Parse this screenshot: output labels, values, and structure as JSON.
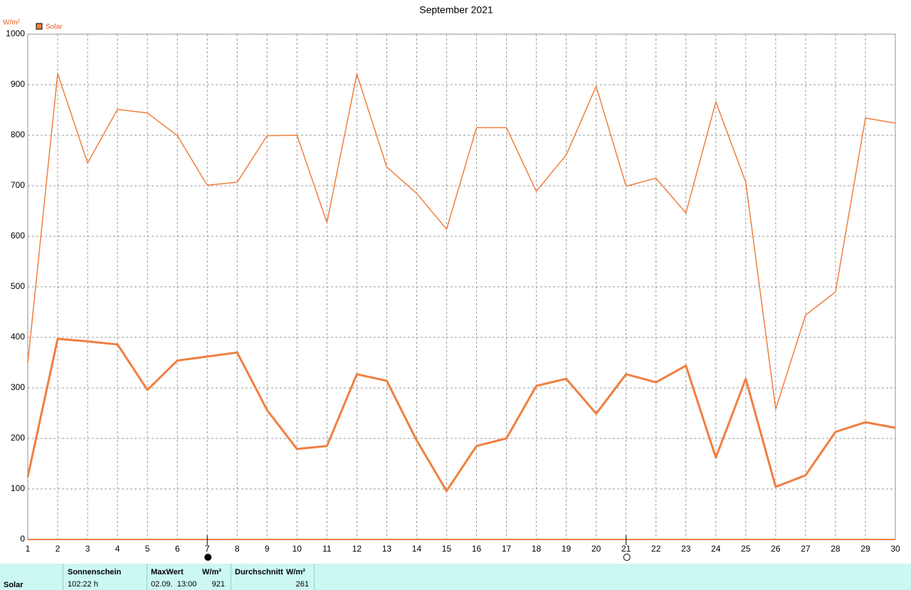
{
  "chart_data": {
    "type": "line",
    "title": "September 2021",
    "y_label": "W/m²",
    "legend": "Solar",
    "x": [
      1,
      2,
      3,
      4,
      5,
      6,
      7,
      8,
      9,
      10,
      11,
      12,
      13,
      14,
      15,
      16,
      17,
      18,
      19,
      20,
      21,
      22,
      23,
      24,
      25,
      26,
      27,
      28,
      29,
      30
    ],
    "series": [
      {
        "name": "Solar",
        "color": "#f07f40",
        "width": 1.5,
        "values": [
          349,
          922,
          745,
          851,
          844,
          799,
          701,
          707,
          799,
          800,
          627,
          921,
          737,
          685,
          614,
          815,
          815,
          689,
          761,
          897,
          699,
          715,
          646,
          866,
          707,
          258,
          444,
          490,
          834,
          824
        ]
      },
      {
        "color": "#f07f40",
        "width": 3,
        "values": [
          124,
          397,
          392,
          386,
          296,
          354,
          362,
          370,
          256,
          179,
          185,
          327,
          314,
          196,
          96,
          185,
          200,
          304,
          318,
          249,
          327,
          311,
          344,
          162,
          318,
          104,
          127,
          213,
          232,
          221
        ]
      }
    ],
    "xlim": [
      1,
      30
    ],
    "xticks": [
      1,
      2,
      3,
      4,
      5,
      6,
      7,
      8,
      9,
      10,
      11,
      12,
      13,
      14,
      15,
      16,
      17,
      18,
      19,
      20,
      21,
      22,
      23,
      24,
      25,
      26,
      27,
      28,
      29,
      30
    ],
    "ylim": [
      0,
      1000
    ],
    "yticks": [
      0,
      100,
      200,
      300,
      400,
      500,
      600,
      700,
      800,
      900,
      1000
    ],
    "grid": true,
    "markers": [
      {
        "x": 7,
        "filled": true
      },
      {
        "x": 21,
        "filled": false
      }
    ]
  },
  "summary": {
    "row_label": "Solar",
    "columns": [
      {
        "header": "Sonnenschein",
        "value": "102:22 h"
      },
      {
        "header": "MaxWert",
        "unit": "W/m²",
        "date": "02.09.  13:00",
        "value": "921"
      },
      {
        "header": "Durchschnitt",
        "unit": "W/m²",
        "value": "261"
      }
    ]
  }
}
